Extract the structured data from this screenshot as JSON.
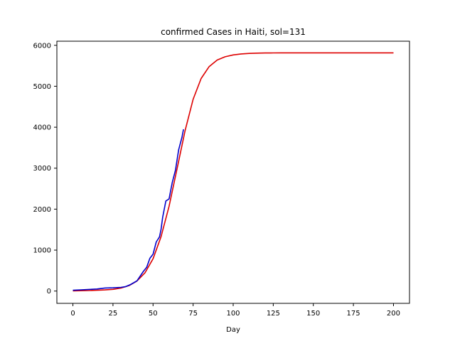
{
  "chart_data": {
    "type": "line",
    "title": "confirmed Cases in Haiti, sol=131",
    "xlabel": "Day",
    "ylabel": "",
    "xlim": [
      -10,
      210
    ],
    "ylim": [
      -300,
      6100
    ],
    "xticks": [
      0,
      25,
      50,
      75,
      100,
      125,
      150,
      175,
      200
    ],
    "yticks": [
      0,
      1000,
      2000,
      3000,
      4000,
      5000,
      6000
    ],
    "grid": false,
    "series": [
      {
        "color": "#dd0000",
        "x": [
          0,
          10,
          20,
          25,
          30,
          35,
          40,
          45,
          50,
          55,
          60,
          65,
          70,
          75,
          80,
          85,
          90,
          95,
          100,
          105,
          110,
          115,
          120,
          125,
          130,
          140,
          150,
          160,
          170,
          180,
          190,
          200
        ],
        "y": [
          5,
          12,
          27,
          41,
          73,
          133,
          247,
          447,
          790,
          1325,
          2070,
          2990,
          3920,
          4680,
          5190,
          5480,
          5640,
          5720,
          5765,
          5790,
          5802,
          5808,
          5812,
          5814,
          5815,
          5816,
          5816,
          5816,
          5816,
          5816,
          5816,
          5816
        ]
      },
      {
        "color": "#0000cc",
        "x": [
          0,
          5,
          10,
          15,
          20,
          25,
          30,
          33,
          36,
          40,
          44,
          46,
          48,
          50,
          52,
          54,
          55,
          56,
          58,
          60,
          62,
          64,
          66,
          67,
          68,
          69
        ],
        "y": [
          20,
          30,
          40,
          50,
          75,
          80,
          90,
          110,
          160,
          250,
          480,
          580,
          800,
          900,
          1200,
          1320,
          1500,
          1800,
          2200,
          2250,
          2650,
          2950,
          3450,
          3600,
          3750,
          3950
        ]
      }
    ]
  }
}
